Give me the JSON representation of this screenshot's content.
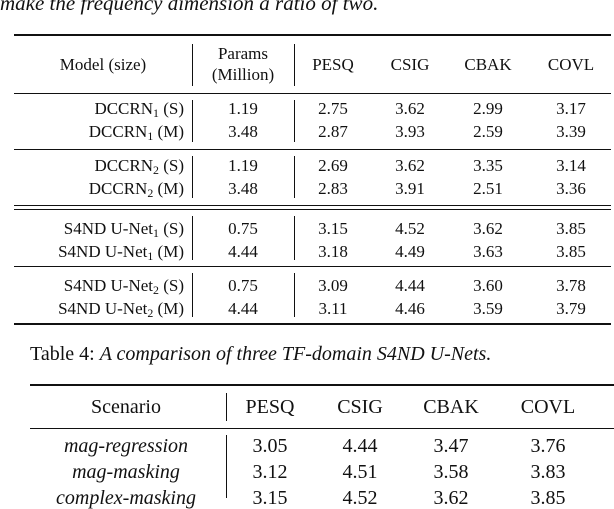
{
  "top_caption": "make the frequency dimension a ratio of two.",
  "table3": {
    "headers": {
      "model": "Model (size)",
      "params_line1": "Params",
      "params_line2": "(Million)",
      "pesq": "PESQ",
      "csig": "CSIG",
      "cbak": "CBAK",
      "covl": "COVL"
    },
    "rows": [
      {
        "name": "DCCRN",
        "sub": "1",
        "size": " (S)",
        "params": "1.19",
        "pesq": "2.75",
        "csig": "3.62",
        "cbak": "2.99",
        "covl": "3.17"
      },
      {
        "name": "DCCRN",
        "sub": "1",
        "size": " (M)",
        "params": "3.48",
        "pesq": "2.87",
        "csig": "3.93",
        "cbak": "2.59",
        "covl": "3.39"
      },
      {
        "name": "DCCRN",
        "sub": "2",
        "size": " (S)",
        "params": "1.19",
        "pesq": "2.69",
        "csig": "3.62",
        "cbak": "3.35",
        "covl": "3.14"
      },
      {
        "name": "DCCRN",
        "sub": "2",
        "size": " (M)",
        "params": "3.48",
        "pesq": "2.83",
        "csig": "3.91",
        "cbak": "2.51",
        "covl": "3.36"
      },
      {
        "name": "S4ND U-Net",
        "sub": "1",
        "size": " (S)",
        "params": "0.75",
        "pesq": "3.15",
        "csig": "4.52",
        "cbak": "3.62",
        "covl": "3.85"
      },
      {
        "name": "S4ND U-Net",
        "sub": "1",
        "size": " (M)",
        "params": "4.44",
        "pesq": "3.18",
        "csig": "4.49",
        "cbak": "3.63",
        "covl": "3.85"
      },
      {
        "name": "S4ND U-Net",
        "sub": "2",
        "size": " (S)",
        "params": "0.75",
        "pesq": "3.09",
        "csig": "4.44",
        "cbak": "3.60",
        "covl": "3.78"
      },
      {
        "name": "S4ND U-Net",
        "sub": "2",
        "size": " (M)",
        "params": "4.44",
        "pesq": "3.11",
        "csig": "4.46",
        "cbak": "3.59",
        "covl": "3.79"
      }
    ]
  },
  "table4": {
    "caption_label": "Table 4: ",
    "caption_text": "A comparison of three TF-domain S4ND U-Nets.",
    "headers": {
      "scenario": "Scenario",
      "pesq": "PESQ",
      "csig": "CSIG",
      "cbak": "CBAK",
      "covl": "COVL"
    },
    "rows": [
      {
        "scenario": "mag-regression",
        "pesq": "3.05",
        "csig": "4.44",
        "cbak": "3.47",
        "covl": "3.76"
      },
      {
        "scenario": "mag-masking",
        "pesq": "3.12",
        "csig": "4.51",
        "cbak": "3.58",
        "covl": "3.83"
      },
      {
        "scenario": "complex-masking",
        "pesq": "3.15",
        "csig": "4.52",
        "cbak": "3.62",
        "covl": "3.85"
      }
    ]
  }
}
